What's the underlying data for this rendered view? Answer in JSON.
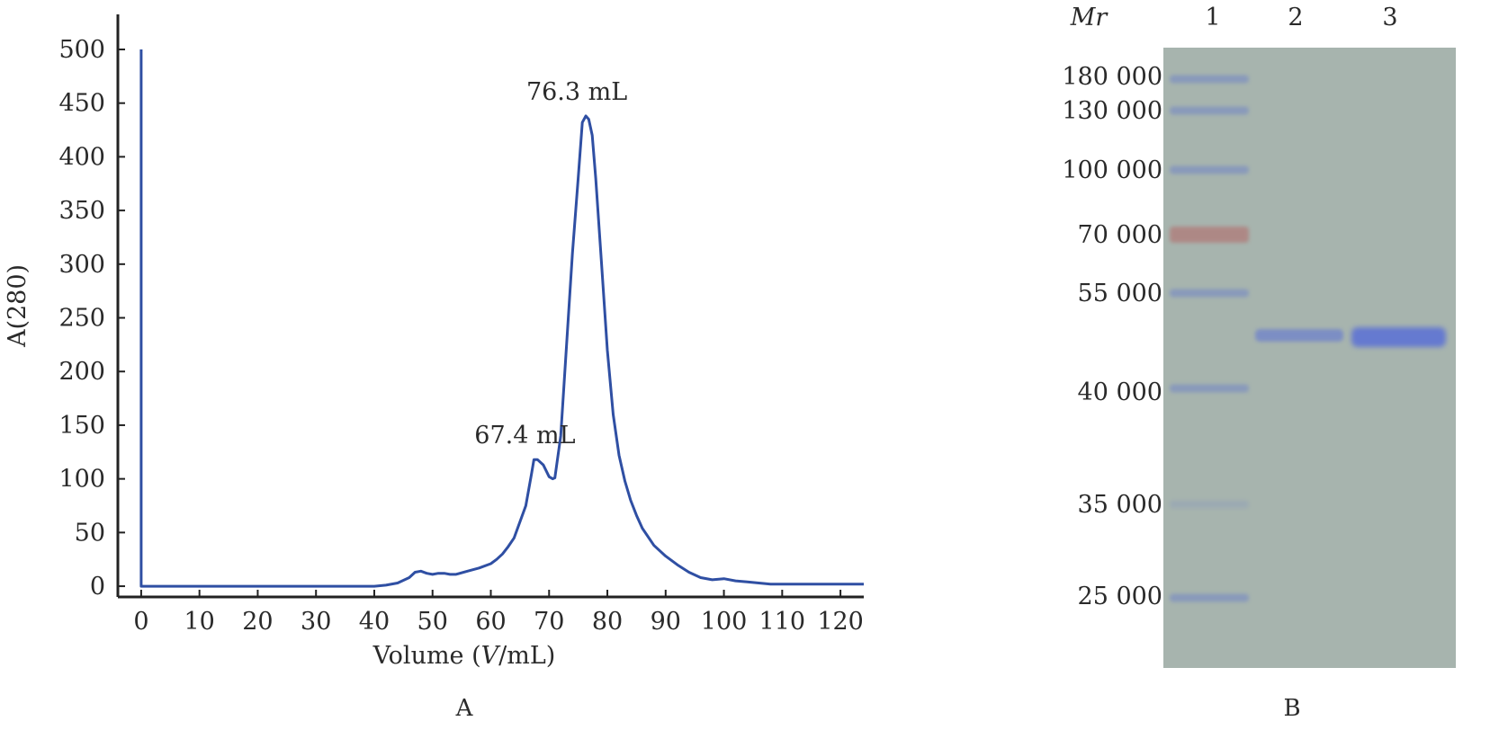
{
  "panel_a": {
    "label": "A",
    "chart_data": {
      "type": "line",
      "xlabel": "Volume (V/mL)",
      "xlabel_parts": [
        "Volume (",
        "V",
        "/mL)"
      ],
      "ylabel": "A(280)",
      "xlim": [
        -4,
        124
      ],
      "ylim": [
        -10,
        500
      ],
      "x_ticks": [
        0,
        10,
        20,
        30,
        40,
        50,
        60,
        70,
        80,
        90,
        100,
        110,
        120
      ],
      "y_ticks": [
        0,
        50,
        100,
        150,
        200,
        250,
        300,
        350,
        400,
        450,
        500
      ],
      "grid": false,
      "color": "#2f4fa3",
      "series": [
        {
          "x": [
            0,
            0,
            0,
            10,
            20,
            30,
            40,
            42,
            44,
            46,
            47,
            48,
            49,
            50,
            51,
            52,
            53,
            54,
            56,
            58,
            60,
            61,
            62,
            63,
            64,
            65,
            66,
            67,
            67.4,
            68,
            69,
            70,
            70.6,
            71,
            72,
            73,
            74,
            75,
            75.7,
            76.3,
            76.8,
            77.4,
            78,
            79,
            80,
            81,
            82,
            83,
            84,
            85,
            86,
            88,
            90,
            92,
            94,
            96,
            98,
            100,
            102,
            104,
            106,
            108,
            110,
            112,
            114,
            116,
            118,
            120,
            124
          ],
          "y": [
            500,
            500,
            0,
            0,
            0,
            0,
            0,
            1,
            3,
            8,
            13,
            14,
            12,
            11,
            12,
            12,
            11,
            11,
            14,
            17,
            21,
            25,
            30,
            37,
            45,
            60,
            75,
            105,
            118,
            118,
            113,
            102,
            100,
            101,
            140,
            225,
            310,
            380,
            432,
            438,
            435,
            420,
            380,
            300,
            220,
            160,
            122,
            98,
            80,
            66,
            54,
            38,
            28,
            20,
            13,
            8,
            6,
            7,
            5,
            4,
            3,
            2,
            2,
            2,
            2,
            2,
            2,
            2,
            2
          ]
        }
      ],
      "annotations": [
        {
          "text": "76.3 mL",
          "x": 76.3,
          "y": 438
        },
        {
          "text": "67.4 mL",
          "x": 67.4,
          "y": 118
        }
      ]
    }
  },
  "panel_b": {
    "label": "B",
    "mr_header": "Mr",
    "lanes": [
      "1",
      "2",
      "3"
    ],
    "markers": [
      "180 000",
      "130 000",
      "100 000",
      "70 000",
      "55 000",
      "40 000",
      "35 000",
      "25 000"
    ],
    "gel_background": "#a7b4ae",
    "band_color": "#5a6fd6",
    "marker_band_color": "#6b80c8",
    "marker_70k_color": "#b07a78"
  }
}
